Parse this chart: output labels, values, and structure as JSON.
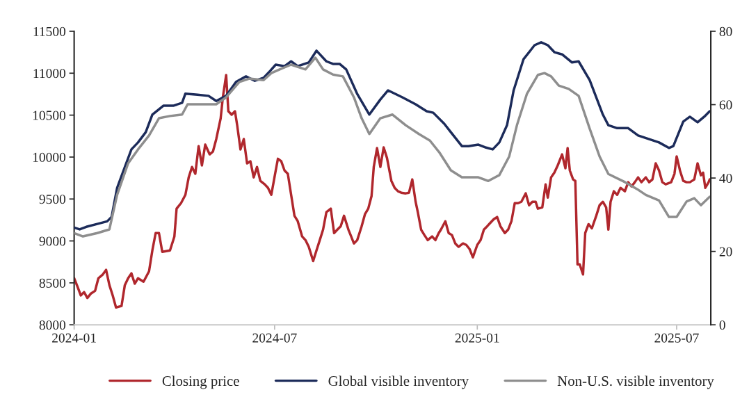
{
  "chart_data": {
    "type": "line",
    "legend": "bottom",
    "grid": false,
    "line_style": "solid",
    "marker": "none",
    "xlim": [
      "2024-01-01",
      "2025-08-01"
    ],
    "xticks": [
      "2024-01",
      "2024-07",
      "2025-01",
      "2025-07"
    ],
    "ylim": [
      8000,
      11500
    ],
    "yticks": [
      8000,
      8500,
      9000,
      9500,
      10000,
      10500,
      11000,
      11500
    ],
    "y2lim": [
      0,
      80
    ],
    "y2ticks": [
      0,
      20,
      40,
      60,
      80
    ],
    "series": [
      {
        "name": "Closing price",
        "color": "#b0272d",
        "x": [
          "2024-01-01",
          "2024-01-04",
          "2024-01-07",
          "2024-01-10",
          "2024-01-13",
          "2024-01-16",
          "2024-01-20",
          "2024-01-23",
          "2024-01-27",
          "2024-01-30",
          "2024-02-02",
          "2024-02-05",
          "2024-02-08",
          "2024-02-13",
          "2024-02-16",
          "2024-02-19",
          "2024-02-22",
          "2024-02-25",
          "2024-02-28",
          "2024-03-04",
          "2024-03-09",
          "2024-03-12",
          "2024-03-15",
          "2024-03-18",
          "2024-03-21",
          "2024-03-28",
          "2024-04-01",
          "2024-04-03",
          "2024-04-07",
          "2024-04-11",
          "2024-04-14",
          "2024-04-17",
          "2024-04-20",
          "2024-04-23",
          "2024-04-26",
          "2024-04-29",
          "2024-05-03",
          "2024-05-06",
          "2024-05-09",
          "2024-05-13",
          "2024-05-15",
          "2024-05-18",
          "2024-05-20",
          "2024-05-23",
          "2024-05-26",
          "2024-05-28",
          "2024-05-31",
          "2024-06-03",
          "2024-06-06",
          "2024-06-09",
          "2024-06-12",
          "2024-06-15",
          "2024-06-18",
          "2024-06-22",
          "2024-06-25",
          "2024-06-28",
          "2024-07-02",
          "2024-07-04",
          "2024-07-07",
          "2024-07-10",
          "2024-07-13",
          "2024-07-16",
          "2024-07-19",
          "2024-07-22",
          "2024-07-26",
          "2024-07-29",
          "2024-08-01",
          "2024-08-05",
          "2024-08-08",
          "2024-08-11",
          "2024-08-14",
          "2024-08-17",
          "2024-08-21",
          "2024-08-24",
          "2024-08-27",
          "2024-08-30",
          "2024-09-02",
          "2024-09-06",
          "2024-09-08",
          "2024-09-11",
          "2024-09-14",
          "2024-09-18",
          "2024-09-21",
          "2024-09-24",
          "2024-09-27",
          "2024-09-29",
          "2024-10-02",
          "2024-10-05",
          "2024-10-08",
          "2024-10-11",
          "2024-10-15",
          "2024-10-18",
          "2024-10-21",
          "2024-10-24",
          "2024-10-28",
          "2024-10-31",
          "2024-11-03",
          "2024-11-06",
          "2024-11-08",
          "2024-11-11",
          "2024-11-14",
          "2024-11-17",
          "2024-11-21",
          "2024-11-24",
          "2024-11-27",
          "2024-11-29",
          "2024-12-03",
          "2024-12-06",
          "2024-12-09",
          "2024-12-12",
          "2024-12-15",
          "2024-12-19",
          "2024-12-22",
          "2024-12-25",
          "2024-12-28",
          "2025-01-01",
          "2025-01-04",
          "2025-01-07",
          "2025-01-10",
          "2025-01-13",
          "2025-01-16",
          "2025-01-19",
          "2025-01-22",
          "2025-01-26",
          "2025-01-29",
          "2025-02-01",
          "2025-02-04",
          "2025-02-07",
          "2025-02-10",
          "2025-02-14",
          "2025-02-17",
          "2025-02-20",
          "2025-02-23",
          "2025-02-25",
          "2025-03-01",
          "2025-03-04",
          "2025-03-06",
          "2025-03-09",
          "2025-03-12",
          "2025-03-15",
          "2025-03-19",
          "2025-03-22",
          "2025-03-24",
          "2025-03-26",
          "2025-03-29",
          "2025-03-31",
          "2025-04-02",
          "2025-04-04",
          "2025-04-07",
          "2025-04-09",
          "2025-04-12",
          "2025-04-15",
          "2025-04-19",
          "2025-04-22",
          "2025-04-25",
          "2025-04-28",
          "2025-04-30",
          "2025-05-02",
          "2025-05-05",
          "2025-05-08",
          "2025-05-11",
          "2025-05-15",
          "2025-05-18",
          "2025-05-21",
          "2025-05-24",
          "2025-05-27",
          "2025-05-30",
          "2025-06-03",
          "2025-06-06",
          "2025-06-09",
          "2025-06-12",
          "2025-06-15",
          "2025-06-18",
          "2025-06-21",
          "2025-06-26",
          "2025-06-29",
          "2025-07-01",
          "2025-07-04",
          "2025-07-07",
          "2025-07-10",
          "2025-07-13",
          "2025-07-17",
          "2025-07-20",
          "2025-07-23",
          "2025-07-25",
          "2025-07-27",
          "2025-07-30",
          "2025-07-31"
        ],
        "values": [
          8555,
          8456,
          8350,
          8390,
          8320,
          8370,
          8405,
          8555,
          8600,
          8655,
          8473,
          8350,
          8207,
          8224,
          8473,
          8555,
          8614,
          8490,
          8555,
          8514,
          8638,
          8887,
          9094,
          9094,
          8870,
          8887,
          9053,
          9385,
          9450,
          9550,
          9758,
          9882,
          9800,
          10131,
          9900,
          10148,
          10032,
          10066,
          10213,
          10460,
          10712,
          10977,
          10546,
          10505,
          10546,
          10380,
          10090,
          10215,
          9925,
          9950,
          9758,
          9882,
          9716,
          9675,
          9633,
          9550,
          9840,
          9980,
          9950,
          9840,
          9800,
          9550,
          9300,
          9235,
          9053,
          9010,
          8930,
          8760,
          8887,
          9010,
          9135,
          9343,
          9385,
          9094,
          9135,
          9175,
          9300,
          9135,
          9070,
          8970,
          9010,
          9175,
          9318,
          9385,
          9535,
          9882,
          10107,
          9882,
          10115,
          9990,
          9716,
          9633,
          9592,
          9575,
          9567,
          9575,
          9733,
          9467,
          9343,
          9135,
          9070,
          9010,
          9053,
          9010,
          9094,
          9135,
          9235,
          9094,
          9070,
          8970,
          8930,
          8970,
          8953,
          8903,
          8805,
          8953,
          9010,
          9135,
          9175,
          9218,
          9260,
          9285,
          9175,
          9094,
          9135,
          9235,
          9450,
          9450,
          9467,
          9567,
          9425,
          9467,
          9467,
          9385,
          9400,
          9675,
          9517,
          9758,
          9815,
          9900,
          10032,
          9866,
          10107,
          9840,
          9733,
          9716,
          8720,
          8720,
          8600,
          9094,
          9200,
          9150,
          9300,
          9425,
          9467,
          9400,
          9135,
          9467,
          9592,
          9550,
          9633,
          9592,
          9700,
          9650,
          9700,
          9758,
          9700,
          9758,
          9700,
          9733,
          9925,
          9840,
          9700,
          9675,
          9700,
          9800,
          10008,
          9840,
          9716,
          9700,
          9700,
          9733,
          9925,
          9783,
          9815,
          9633,
          9700,
          9733
        ]
      },
      {
        "name": "Global visible inventory",
        "color": "#1c2b5a",
        "axis": "y2",
        "x": [
          "2024-01-01",
          "2024-01-06",
          "2024-01-12",
          "2024-01-22",
          "2024-01-31",
          "2024-02-04",
          "2024-02-09",
          "2024-02-16",
          "2024-02-22",
          "2024-02-28",
          "2024-03-06",
          "2024-03-12",
          "2024-03-22",
          "2024-03-31",
          "2024-04-08",
          "2024-04-11",
          "2024-04-22",
          "2024-05-02",
          "2024-05-09",
          "2024-05-18",
          "2024-05-27",
          "2024-06-05",
          "2024-06-13",
          "2024-06-21",
          "2024-06-27",
          "2024-07-02",
          "2024-07-10",
          "2024-07-16",
          "2024-07-22",
          "2024-08-01",
          "2024-08-08",
          "2024-08-17",
          "2024-08-23",
          "2024-08-29",
          "2024-09-04",
          "2024-09-14",
          "2024-09-25",
          "2024-10-05",
          "2024-10-12",
          "2024-10-25",
          "2024-11-06",
          "2024-11-16",
          "2024-11-22",
          "2024-12-02",
          "2024-12-08",
          "2024-12-18",
          "2024-12-24",
          "2025-01-02",
          "2025-01-09",
          "2025-01-15",
          "2025-01-21",
          "2025-01-28",
          "2025-02-03",
          "2025-02-12",
          "2025-02-22",
          "2025-02-28",
          "2025-03-06",
          "2025-03-12",
          "2025-03-19",
          "2025-03-28",
          "2025-04-03",
          "2025-04-13",
          "2025-04-25",
          "2025-04-30",
          "2025-05-08",
          "2025-05-18",
          "2025-05-27",
          "2025-06-06",
          "2025-06-15",
          "2025-06-24",
          "2025-06-28",
          "2025-07-07",
          "2025-07-13",
          "2025-07-20",
          "2025-07-26",
          "2025-07-31"
        ],
        "values": [
          26.5,
          26,
          26.7,
          27.5,
          28.2,
          29.4,
          37.3,
          43,
          47.8,
          49.7,
          52.5,
          57.3,
          59.7,
          59.7,
          60.5,
          63,
          62.7,
          62.4,
          61,
          62.4,
          66.2,
          67.7,
          66.5,
          67.3,
          69.2,
          70.9,
          70.5,
          71.8,
          70.5,
          71.5,
          74.7,
          71.8,
          71.1,
          71.1,
          69.6,
          62.9,
          57.3,
          61.4,
          63.9,
          62,
          60.1,
          58.2,
          57.8,
          54.8,
          52.5,
          48.7,
          48.7,
          49.1,
          48.3,
          47.8,
          49.7,
          54.4,
          63.9,
          72.4,
          76.2,
          77,
          76.2,
          74.3,
          73.7,
          71.5,
          71.8,
          66.7,
          57.3,
          54.4,
          53.6,
          53.6,
          51.6,
          50.6,
          49.7,
          48.2,
          48.7,
          55.4,
          56.7,
          55.2,
          56.7,
          58.2
        ]
      },
      {
        "name": "Non-U.S. visible inventory",
        "color": "#8e8e8e",
        "axis": "y2",
        "x": [
          "2024-01-01",
          "2024-01-09",
          "2024-01-22",
          "2024-02-02",
          "2024-02-09",
          "2024-02-19",
          "2024-02-28",
          "2024-03-09",
          "2024-03-18",
          "2024-03-28",
          "2024-04-08",
          "2024-04-13",
          "2024-05-02",
          "2024-05-09",
          "2024-05-18",
          "2024-05-30",
          "2024-06-08",
          "2024-06-21",
          "2024-06-28",
          "2024-07-07",
          "2024-07-16",
          "2024-07-29",
          "2024-08-07",
          "2024-08-14",
          "2024-08-23",
          "2024-09-01",
          "2024-09-11",
          "2024-09-18",
          "2024-09-25",
          "2024-10-05",
          "2024-10-16",
          "2024-10-28",
          "2024-11-09",
          "2024-11-19",
          "2024-11-28",
          "2024-12-08",
          "2024-12-18",
          "2025-01-02",
          "2025-01-11",
          "2025-01-21",
          "2025-01-30",
          "2025-02-06",
          "2025-02-15",
          "2025-02-25",
          "2025-03-03",
          "2025-03-09",
          "2025-03-16",
          "2025-03-25",
          "2025-04-03",
          "2025-04-13",
          "2025-04-22",
          "2025-04-30",
          "2025-05-15",
          "2025-05-26",
          "2025-06-03",
          "2025-06-15",
          "2025-06-24",
          "2025-07-01",
          "2025-07-10",
          "2025-07-17",
          "2025-07-23",
          "2025-07-31"
        ],
        "values": [
          25,
          24.1,
          25,
          26,
          35.4,
          44,
          47.8,
          51.6,
          56.3,
          56.9,
          57.3,
          60.1,
          60.1,
          60.1,
          62,
          66.2,
          67.1,
          66.7,
          68.6,
          69.8,
          70.9,
          69.6,
          72.8,
          69.6,
          68.2,
          67.7,
          62,
          56.3,
          52,
          56.3,
          57.3,
          54.4,
          52,
          50.2,
          46.8,
          42.1,
          40.2,
          40.2,
          39.2,
          40.8,
          45.9,
          54.4,
          62.9,
          68.1,
          68.6,
          67.7,
          65.2,
          64.3,
          62.4,
          53.5,
          45.9,
          41.1,
          38.9,
          37,
          35.4,
          33.9,
          29.4,
          29.4,
          33.6,
          34.5,
          32.6,
          34.9
        ]
      }
    ]
  }
}
